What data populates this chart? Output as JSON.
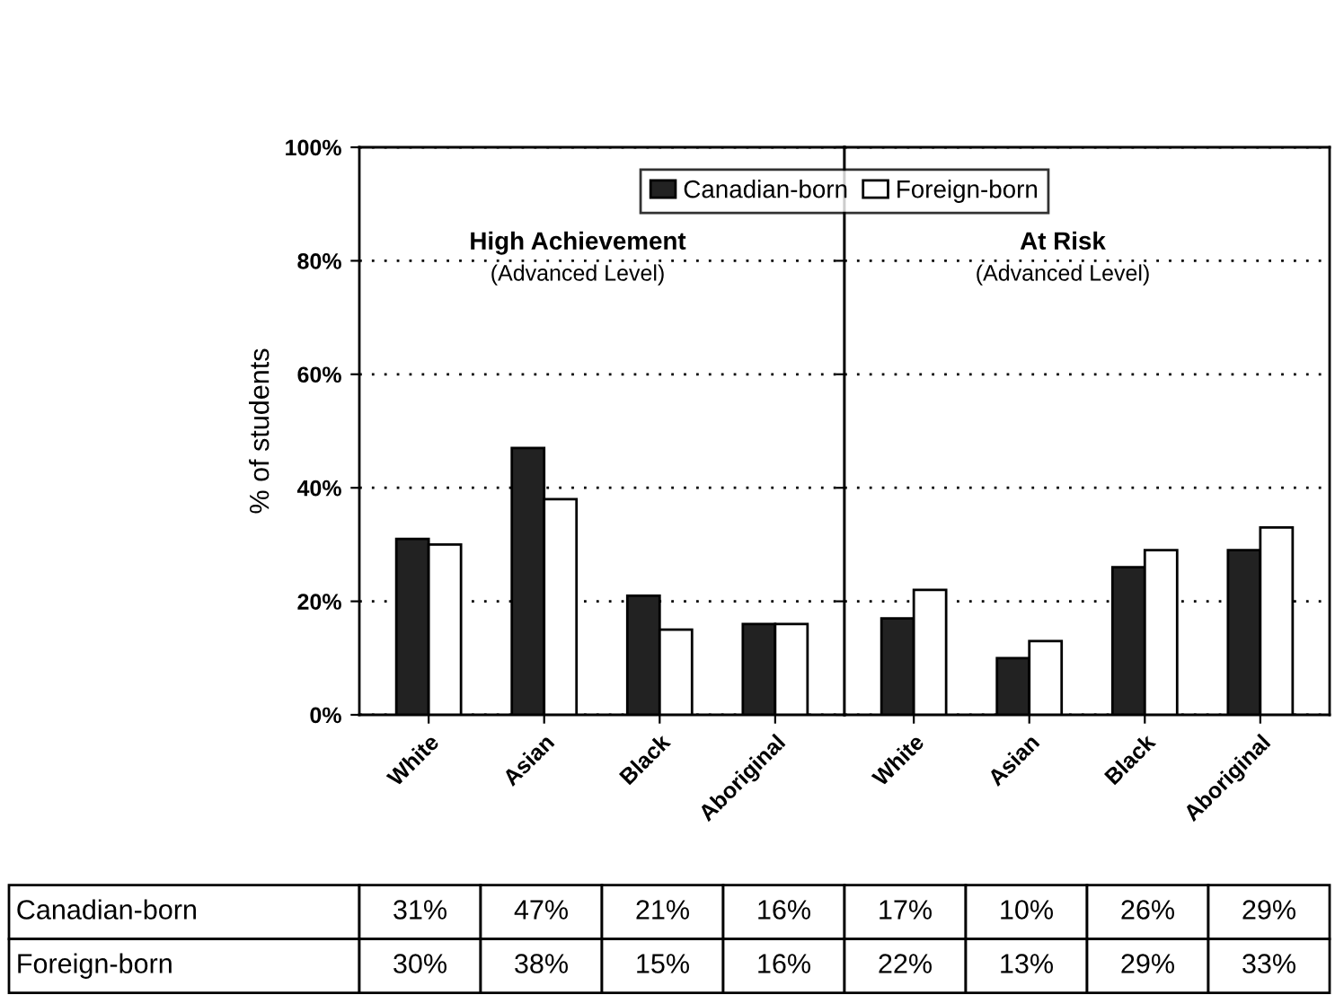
{
  "chart_data": [
    {
      "type": "bar",
      "ylabel": "% of students",
      "annotations": [
        "High Achievement",
        "(Advanced Level)"
      ],
      "categories": [
        "White",
        "Asian",
        "Black",
        "Aboriginal"
      ],
      "series": [
        {
          "name": "Canadian-born",
          "color": "#222222",
          "values": [
            31,
            47,
            21,
            16
          ],
          "value_labels": [
            "31%",
            "47%",
            "21%",
            "16%"
          ]
        },
        {
          "name": "Foreign-born",
          "color": "#ffffff",
          "values": [
            30,
            38,
            15,
            16
          ],
          "value_labels": [
            "30%",
            "38%",
            "15%",
            "16%"
          ]
        }
      ],
      "ylim": [
        0,
        100
      ],
      "yticks": [
        {
          "value": 0,
          "label": "0%"
        },
        {
          "value": 20,
          "label": "20%"
        },
        {
          "value": 40,
          "label": "40%"
        },
        {
          "value": 60,
          "label": "60%"
        },
        {
          "value": 80,
          "label": "80%"
        },
        {
          "value": 100,
          "label": "100%"
        }
      ],
      "grid": "y",
      "legend": "top right"
    },
    {
      "type": "bar",
      "annotations": [
        "At Risk",
        "(Advanced Level)"
      ],
      "categories": [
        "White",
        "Asian",
        "Black",
        "Aboriginal"
      ],
      "series": [
        {
          "color": "#222222",
          "values": [
            17,
            10,
            26,
            29
          ],
          "value_labels": [
            "17%",
            "10%",
            "26%",
            "29%"
          ]
        },
        {
          "color": "#ffffff",
          "values": [
            22,
            13,
            29,
            33
          ],
          "value_labels": [
            "22%",
            "13%",
            "29%",
            "33%"
          ]
        }
      ],
      "ylim": [
        0,
        100
      ],
      "yticks": [
        {
          "value": 0,
          "label": null
        },
        {
          "value": 20,
          "label": null
        },
        {
          "value": 40,
          "label": null
        },
        {
          "value": 60,
          "label": null
        },
        {
          "value": 80,
          "label": null
        },
        {
          "value": 100,
          "label": null
        }
      ],
      "grid": "y"
    }
  ]
}
